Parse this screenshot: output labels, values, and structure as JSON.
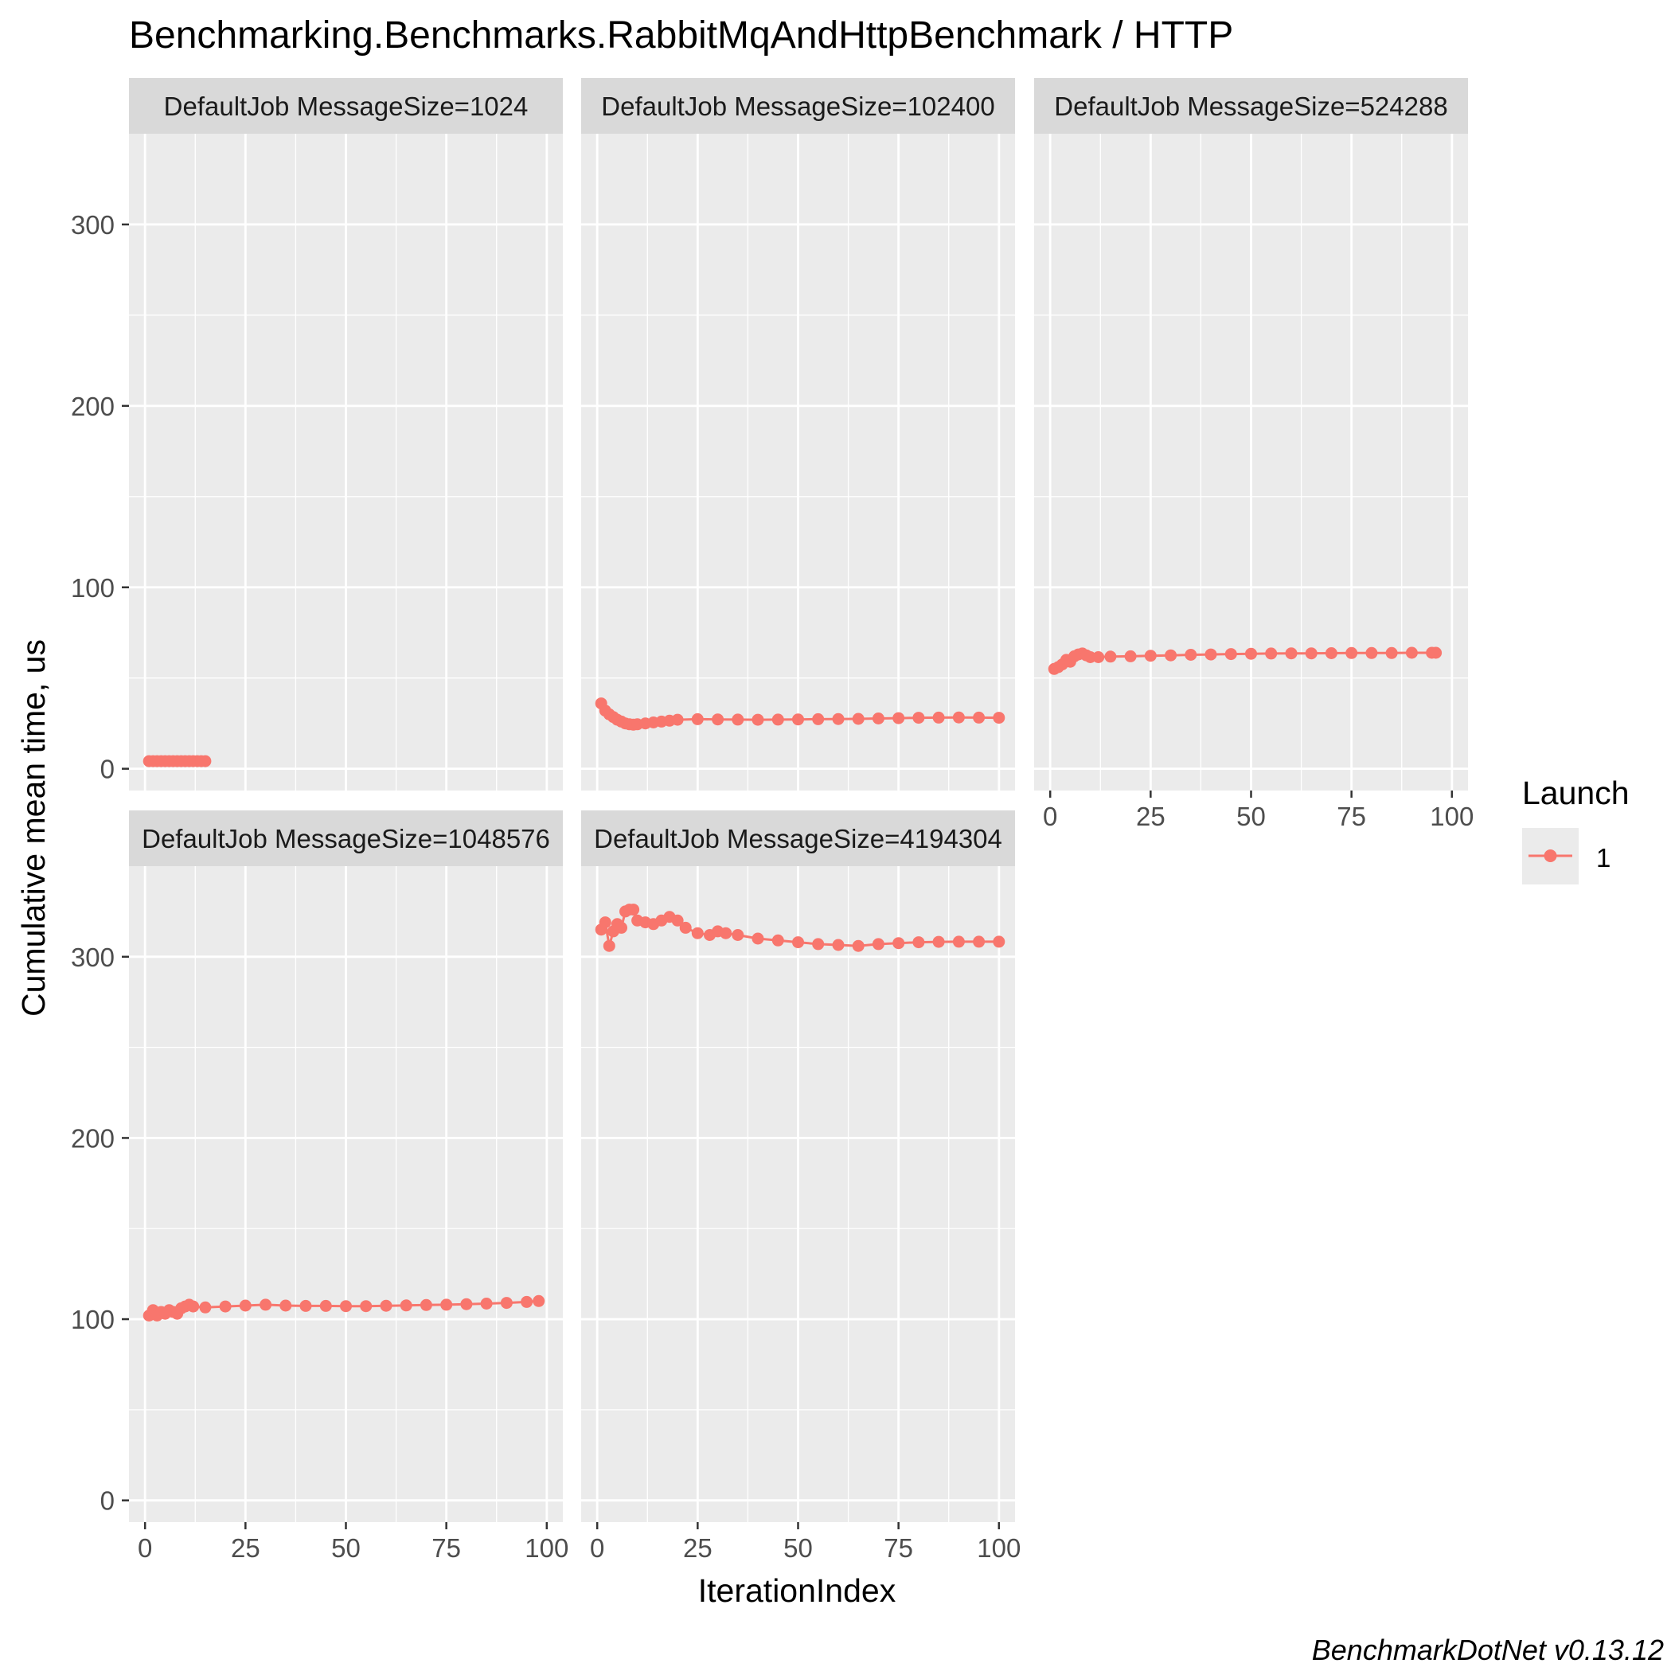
{
  "chart_data": {
    "type": "line",
    "title": "Benchmarking.Benchmarks.RabbitMqAndHttpBenchmark / HTTP",
    "xlabel": "IterationIndex",
    "ylabel": "Cumulative mean time, us",
    "caption": "BenchmarkDotNet v0.13.12",
    "xlim": [
      -4,
      104
    ],
    "ylim": [
      -12,
      350
    ],
    "x_ticks": [
      0,
      25,
      50,
      75,
      100
    ],
    "y_ticks": [
      0,
      100,
      200,
      300
    ],
    "grid": true,
    "legend": {
      "title": "Launch",
      "entries": [
        "1"
      ],
      "position": "right"
    },
    "colors": {
      "series": "#F8766D",
      "panel_bg": "#EBEBEB",
      "strip_bg": "#D9D9D9",
      "grid_major": "#FFFFFF",
      "text": "#000000",
      "axis_text": "#4D4D4D"
    },
    "panels": [
      {
        "label": "DefaultJob MessageSize=1024",
        "series": [
          {
            "name": "1",
            "x": [
              1,
              2,
              3,
              4,
              5,
              6,
              7,
              8,
              9,
              10,
              11,
              12,
              13,
              14,
              15
            ],
            "y": [
              4.2,
              4.2,
              4.2,
              4.2,
              4.2,
              4.2,
              4.2,
              4.2,
              4.2,
              4.2,
              4.2,
              4.2,
              4.2,
              4.2,
              4.2
            ]
          }
        ]
      },
      {
        "label": "DefaultJob MessageSize=102400",
        "series": [
          {
            "name": "1",
            "x": [
              1,
              2,
              3,
              4,
              5,
              6,
              7,
              8,
              9,
              10,
              12,
              14,
              16,
              18,
              20,
              25,
              30,
              35,
              40,
              45,
              50,
              55,
              60,
              65,
              70,
              75,
              80,
              85,
              90,
              95,
              100
            ],
            "y": [
              36,
              32,
              30,
              28.5,
              27,
              26,
              25,
              24.5,
              24.3,
              24.5,
              25,
              25.5,
              26,
              26.5,
              27,
              27.3,
              27.2,
              27.1,
              27,
              27.1,
              27.2,
              27.3,
              27.4,
              27.5,
              27.7,
              27.9,
              28.1,
              28.2,
              28.3,
              28.2,
              28.1
            ]
          }
        ]
      },
      {
        "label": "DefaultJob MessageSize=524288",
        "series": [
          {
            "name": "1",
            "x": [
              1,
              2,
              3,
              4,
              5,
              6,
              7,
              8,
              9,
              10,
              12,
              15,
              20,
              25,
              30,
              35,
              40,
              45,
              50,
              55,
              60,
              65,
              70,
              75,
              80,
              85,
              90,
              95,
              96
            ],
            "y": [
              55,
              56,
              57.5,
              60,
              59,
              62,
              63,
              63.5,
              62.5,
              61.5,
              61.5,
              61.8,
              62,
              62.3,
              62.5,
              62.8,
              63,
              63.2,
              63.4,
              63.5,
              63.6,
              63.6,
              63.7,
              63.8,
              63.8,
              63.8,
              63.9,
              63.9,
              63.9
            ]
          }
        ]
      },
      {
        "label": "DefaultJob MessageSize=1048576",
        "series": [
          {
            "name": "1",
            "x": [
              1,
              2,
              3,
              4,
              5,
              6,
              7,
              8,
              9,
              10,
              11,
              12,
              15,
              20,
              25,
              30,
              35,
              40,
              45,
              50,
              55,
              60,
              65,
              70,
              75,
              80,
              85,
              90,
              95,
              98
            ],
            "y": [
              102,
              105,
              102,
              104,
              103,
              105,
              104,
              103,
              106,
              107,
              108,
              107,
              106.5,
              107,
              107.5,
              108,
              107.5,
              107.3,
              107.3,
              107.2,
              107.2,
              107.4,
              107.6,
              107.8,
              108,
              108.3,
              108.6,
              109,
              109.5,
              110
            ]
          }
        ]
      },
      {
        "label": "DefaultJob MessageSize=4194304",
        "series": [
          {
            "name": "1",
            "x": [
              1,
              2,
              3,
              4,
              5,
              6,
              7,
              8,
              9,
              10,
              12,
              14,
              16,
              18,
              20,
              22,
              25,
              28,
              30,
              32,
              35,
              40,
              45,
              50,
              55,
              60,
              65,
              70,
              75,
              80,
              85,
              90,
              95,
              100
            ],
            "y": [
              315,
              319,
              306,
              314,
              318,
              316,
              325,
              326,
              326,
              320,
              319,
              318,
              320,
              322,
              320,
              316,
              313,
              312,
              314,
              313,
              312,
              310,
              309,
              308,
              307,
              306.5,
              306,
              307,
              307.5,
              308,
              308.2,
              308.3,
              308.3,
              308.3
            ]
          }
        ]
      }
    ]
  }
}
